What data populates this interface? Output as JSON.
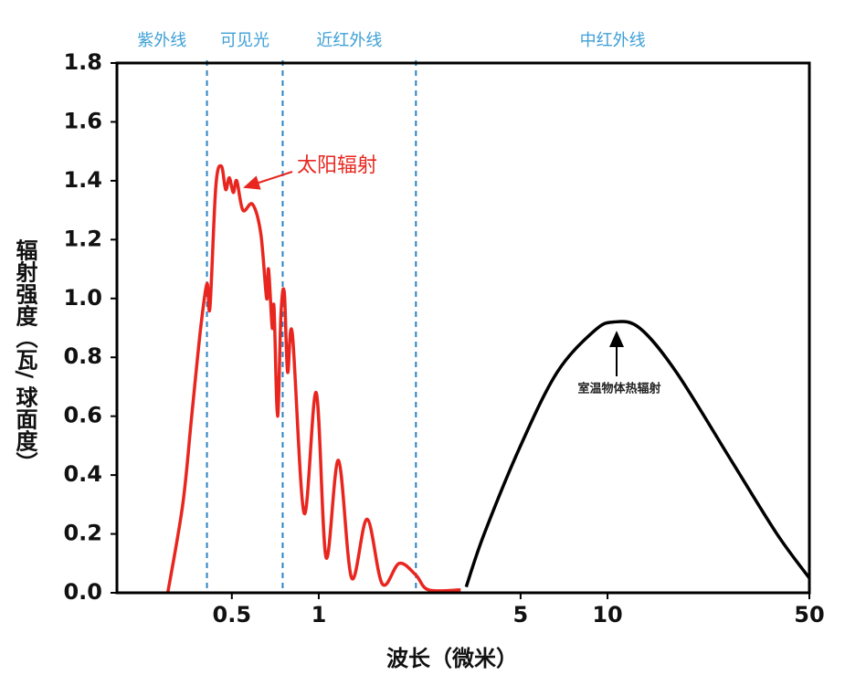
{
  "chart_data": {
    "type": "line",
    "x_label": "波长（微米）",
    "y_label": "辐射强度（瓦/ 球面度）",
    "xscale": "log",
    "xlim": [
      0.2,
      50
    ],
    "xticks": [
      0.5,
      1,
      5,
      10,
      50
    ],
    "ylim": [
      0,
      1.8
    ],
    "yticks": [
      {
        "value": 0,
        "label": "0.0"
      },
      0.2,
      0.4,
      0.6,
      0.8,
      {
        "value": 1,
        "label": "1.0"
      },
      1.2,
      1.4,
      1.6,
      1.8
    ],
    "region_labels": [
      "紫外线",
      "可见光",
      "近红外线",
      "中红外线"
    ],
    "region_boundaries": [
      0.41,
      0.75,
      2.17
    ],
    "boundary_color": "#2b82c4",
    "series": [
      {
        "name": "太阳辐射",
        "color": "#e8261f",
        "x": [
          0.3,
          0.338,
          0.363,
          0.39,
          0.41,
          0.42,
          0.44,
          0.46,
          0.476,
          0.49,
          0.506,
          0.52,
          0.546,
          0.59,
          0.63,
          0.66,
          0.67,
          0.69,
          0.7,
          0.72,
          0.74,
          0.76,
          0.78,
          0.81,
          0.89,
          0.98,
          1.06,
          1.17,
          1.3,
          1.47,
          1.66,
          1.9,
          2.17,
          2.4,
          3.1
        ],
        "values": [
          0,
          0.3,
          0.6,
          0.9,
          1.05,
          0.97,
          1.38,
          1.45,
          1.37,
          1.41,
          1.36,
          1.4,
          1.3,
          1.32,
          1.22,
          1.0,
          1.1,
          0.9,
          0.97,
          0.6,
          0.95,
          1.02,
          0.75,
          0.88,
          0.27,
          0.68,
          0.12,
          0.45,
          0.05,
          0.25,
          0.03,
          0.1,
          0.06,
          0.01,
          0.01
        ]
      },
      {
        "name": "室温物体热辐射",
        "color": "#000000",
        "x": [
          3.24,
          3.74,
          5.0,
          6.7,
          9.0,
          10.5,
          12.9,
          17.3,
          26.8,
          38.6,
          50
        ],
        "values": [
          0.02,
          0.2,
          0.5,
          0.75,
          0.89,
          0.92,
          0.9,
          0.75,
          0.45,
          0.2,
          0.05
        ]
      }
    ]
  }
}
